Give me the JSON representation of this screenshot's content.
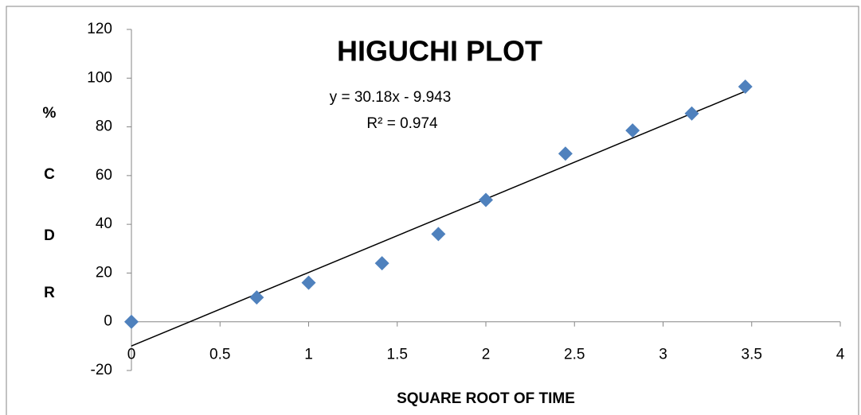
{
  "chart_data": {
    "type": "scatter",
    "title": "HIGUCHI PLOT",
    "xlabel": "SQUARE ROOT OF TIME",
    "ylabel": [
      "%",
      "C",
      "D",
      "R"
    ],
    "annotations": [
      "y = 30.18x - 9.943",
      "R² = 0.974"
    ],
    "series": [
      {
        "name": "%CDR",
        "color": "#4f81bd",
        "x": [
          0,
          0.707,
          1,
          1.414,
          1.732,
          2,
          2.449,
          2.828,
          3.162,
          3.464
        ],
        "values": [
          0,
          10,
          16,
          24,
          36,
          50,
          69,
          78.5,
          85.5,
          96.5
        ]
      }
    ],
    "trendline": {
      "slope": 30.18,
      "intercept": -9.943,
      "color": "#000000"
    },
    "xlim": [
      0,
      4
    ],
    "xticks": [
      0,
      0.5,
      1,
      1.5,
      2,
      2.5,
      3,
      3.5,
      4
    ],
    "ylim": [
      -20,
      120
    ],
    "yticks": [
      -20,
      0,
      20,
      40,
      60,
      80,
      100,
      120
    ]
  }
}
